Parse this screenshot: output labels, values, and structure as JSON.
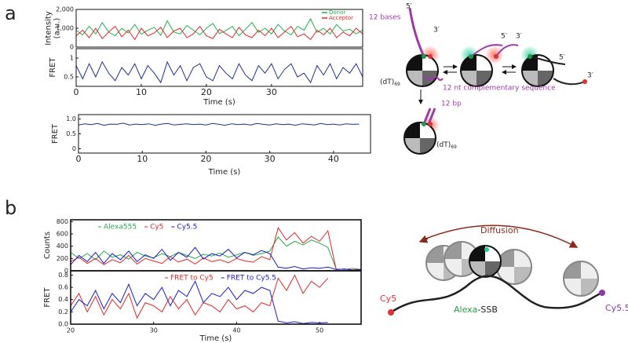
{
  "panel_labels": [
    "a",
    "b"
  ],
  "chart_data": [
    {
      "type": "line",
      "ylabel": [
        "Intensity",
        "(a.u.)"
      ],
      "xlim": [
        0,
        44
      ],
      "ylim": [
        0,
        2000
      ],
      "yticks": [
        0,
        {
          "value": 1000,
          "label": "1,000"
        },
        {
          "value": 2000,
          "label": "2,000"
        }
      ],
      "legend": "upper right",
      "x": [
        0,
        1,
        2,
        3,
        4,
        5,
        6,
        7,
        8,
        9,
        10,
        11,
        12,
        13,
        14,
        15,
        16,
        17,
        18,
        19,
        20,
        21,
        22,
        23,
        24,
        25,
        26,
        27,
        28,
        29,
        30,
        31,
        32,
        33,
        34,
        35,
        36,
        37,
        38,
        39,
        40,
        41,
        42,
        43,
        44
      ],
      "series": [
        {
          "name": "Donor",
          "color": "#22b04b",
          "values": [
            900,
            650,
            1100,
            700,
            1300,
            800,
            600,
            1000,
            750,
            1200,
            680,
            900,
            1050,
            620,
            1400,
            800,
            700,
            1150,
            900,
            650,
            1000,
            1250,
            720,
            880,
            1100,
            600,
            950,
            1300,
            780,
            1000,
            700,
            1200,
            850,
            650,
            1100,
            900,
            1500,
            780,
            1000,
            700,
            1200,
            850,
            950,
            700,
            900
          ]
        },
        {
          "name": "Acceptor",
          "color": "#e0282a",
          "values": [
            600,
            900,
            500,
            1000,
            450,
            800,
            1100,
            550,
            900,
            400,
            1000,
            600,
            750,
            1050,
            500,
            850,
            1000,
            500,
            700,
            1100,
            600,
            450,
            950,
            700,
            500,
            1050,
            650,
            500,
            900,
            600,
            1000,
            500,
            800,
            1100,
            550,
            700,
            400,
            900,
            650,
            1000,
            500,
            800,
            600,
            1000,
            700
          ]
        }
      ]
    },
    {
      "type": "line",
      "ylabel": [
        "FRET"
      ],
      "xlabel": "Time (s)",
      "xlim": [
        0,
        44
      ],
      "ylim": [
        0.25,
        1.25
      ],
      "xticks": [
        0,
        10,
        20,
        30
      ],
      "yticks": [
        0.5,
        1
      ],
      "x": [
        0,
        1,
        2,
        3,
        4,
        5,
        6,
        7,
        8,
        9,
        10,
        11,
        12,
        13,
        14,
        15,
        16,
        17,
        18,
        19,
        20,
        21,
        22,
        23,
        24,
        25,
        26,
        27,
        28,
        29,
        30,
        31,
        32,
        33,
        34,
        35,
        36,
        37,
        38,
        39,
        40,
        41,
        42,
        43,
        44
      ],
      "series": [
        {
          "color": "#1f2f8f",
          "values": [
            0.8,
            0.45,
            0.85,
            0.5,
            0.9,
            0.6,
            0.4,
            0.75,
            0.55,
            0.85,
            0.45,
            0.8,
            0.6,
            0.35,
            0.9,
            0.55,
            0.8,
            0.4,
            0.75,
            0.85,
            0.5,
            0.4,
            0.8,
            0.6,
            0.45,
            0.85,
            0.55,
            0.4,
            0.8,
            0.6,
            0.85,
            0.45,
            0.7,
            0.85,
            0.5,
            0.6,
            0.35,
            0.8,
            0.55,
            0.85,
            0.45,
            0.75,
            0.6,
            0.85,
            0.5
          ]
        }
      ]
    },
    {
      "type": "line",
      "ylabel": [
        "FRET"
      ],
      "xlabel": "Time (s)",
      "xlim": [
        0,
        45.8
      ],
      "ylim": [
        -0.15,
        1.15
      ],
      "xticks": [
        0,
        10,
        20,
        30,
        40
      ],
      "yticks": [
        0,
        0.5,
        {
          "value": 1,
          "label": "1.0"
        }
      ],
      "x": [
        0,
        1,
        2,
        3,
        4,
        5,
        6,
        7,
        8,
        9,
        10,
        11,
        12,
        13,
        14,
        15,
        16,
        17,
        18,
        19,
        20,
        21,
        22,
        23,
        24,
        25,
        26,
        27,
        28,
        29,
        30,
        31,
        32,
        33,
        34,
        35,
        36,
        37,
        38,
        39,
        40,
        41,
        42,
        43,
        44
      ],
      "series": [
        {
          "color": "#1f2f8f",
          "values": [
            0.8,
            0.84,
            0.81,
            0.85,
            0.79,
            0.83,
            0.82,
            0.86,
            0.8,
            0.83,
            0.81,
            0.84,
            0.79,
            0.83,
            0.85,
            0.8,
            0.82,
            0.84,
            0.81,
            0.83,
            0.8,
            0.85,
            0.82,
            0.79,
            0.84,
            0.81,
            0.83,
            0.8,
            0.85,
            0.82,
            0.8,
            0.84,
            0.81,
            0.83,
            0.79,
            0.84,
            0.82,
            0.8,
            0.85,
            0.81,
            0.83,
            0.8,
            0.84,
            0.82,
            0.83
          ]
        }
      ]
    },
    {
      "type": "line",
      "ylabel": [
        "Counts"
      ],
      "xlim": [
        20,
        55
      ],
      "ylim": [
        0,
        830
      ],
      "yticks": [
        0,
        200,
        400,
        600,
        800
      ],
      "legend": "upper left",
      "x": [
        20,
        21,
        22,
        23,
        24,
        25,
        26,
        27,
        28,
        29,
        30,
        31,
        32,
        33,
        34,
        35,
        36,
        37,
        38,
        39,
        40,
        41,
        42,
        43,
        44,
        45,
        46,
        47,
        48,
        49,
        50,
        51,
        52,
        53,
        54,
        55,
        56
      ],
      "series": [
        {
          "name": "Alexa555",
          "color": "#2aa84a",
          "values": [
            300,
            200,
            280,
            180,
            320,
            220,
            260,
            190,
            300,
            240,
            210,
            280,
            230,
            300,
            250,
            200,
            270,
            240,
            290,
            220,
            260,
            300,
            250,
            280,
            320,
            550,
            400,
            480,
            420,
            500,
            450,
            380,
            30,
            20,
            40,
            20,
            10
          ]
        },
        {
          "name": "Cy5",
          "color": "#e0282a",
          "values": [
            150,
            220,
            120,
            200,
            100,
            180,
            130,
            250,
            110,
            200,
            160,
            120,
            230,
            140,
            190,
            110,
            210,
            150,
            180,
            130,
            200,
            160,
            140,
            230,
            180,
            700,
            500,
            620,
            450,
            560,
            480,
            650,
            20,
            30,
            15,
            25,
            10
          ]
        },
        {
          "name": "Cy5.5",
          "color": "#1a1ad0",
          "values": [
            100,
            250,
            150,
            300,
            120,
            280,
            180,
            320,
            150,
            260,
            200,
            350,
            170,
            300,
            220,
            380,
            190,
            280,
            240,
            350,
            210,
            300,
            260,
            330,
            280,
            60,
            40,
            70,
            30,
            50,
            40,
            60,
            20,
            30,
            10,
            20,
            15
          ]
        }
      ]
    },
    {
      "type": "line",
      "ylabel": [
        "FRET"
      ],
      "xlabel": "Time (s)",
      "xlim": [
        20,
        55
      ],
      "ylim": [
        0,
        0.87
      ],
      "xticks": [
        20,
        30,
        40,
        50
      ],
      "yticks": [
        {
          "value": 0,
          "label": "0.0"
        },
        0.2,
        0.4,
        0.6,
        0.8
      ],
      "legend": "upper center",
      "x": [
        20,
        21,
        22,
        23,
        24,
        25,
        26,
        27,
        28,
        29,
        30,
        31,
        32,
        33,
        34,
        35,
        36,
        37,
        38,
        39,
        40,
        41,
        42,
        43,
        44,
        45,
        46,
        47,
        48,
        49,
        50,
        51,
        52,
        53,
        54,
        55,
        56
      ],
      "series": [
        {
          "name": "FRET to Cy5",
          "color": "#e0282a",
          "values": [
            0.3,
            0.5,
            0.2,
            0.45,
            0.15,
            0.4,
            0.25,
            0.5,
            0.1,
            0.35,
            0.3,
            0.2,
            0.45,
            0.25,
            0.4,
            0.15,
            0.35,
            0.3,
            0.2,
            0.4,
            0.25,
            0.3,
            0.2,
            0.35,
            0.3,
            0.75,
            0.55,
            0.8,
            0.5,
            0.7,
            0.6,
            0.75,
            null,
            null,
            null,
            null,
            null
          ]
        },
        {
          "name": "FRET to Cy5.5",
          "color": "#1a1ad0",
          "values": [
            0.2,
            0.4,
            0.3,
            0.55,
            0.25,
            0.5,
            0.35,
            0.65,
            0.3,
            0.5,
            0.4,
            0.6,
            0.3,
            0.55,
            0.45,
            0.7,
            0.35,
            0.5,
            0.45,
            0.6,
            0.4,
            0.55,
            0.5,
            0.6,
            0.55,
            0.05,
            0.02,
            0.04,
            0.01,
            0.03,
            0.02,
            0.03,
            null,
            null,
            null,
            null,
            null
          ]
        }
      ]
    }
  ],
  "diagrams": {
    "a": {
      "five_prime": "5′",
      "three_prime": "3′",
      "bases": "12 bases",
      "dt": "(dT)",
      "dt_sub": "69",
      "complementary": "12 nt complementary sequence",
      "bp": "12 bp"
    },
    "b": {
      "diffusion": "Diffusion",
      "cy5": "Cy5",
      "cy55": "Cy5.5",
      "alexa": "Alexa",
      "ssb": "-SSB"
    }
  }
}
